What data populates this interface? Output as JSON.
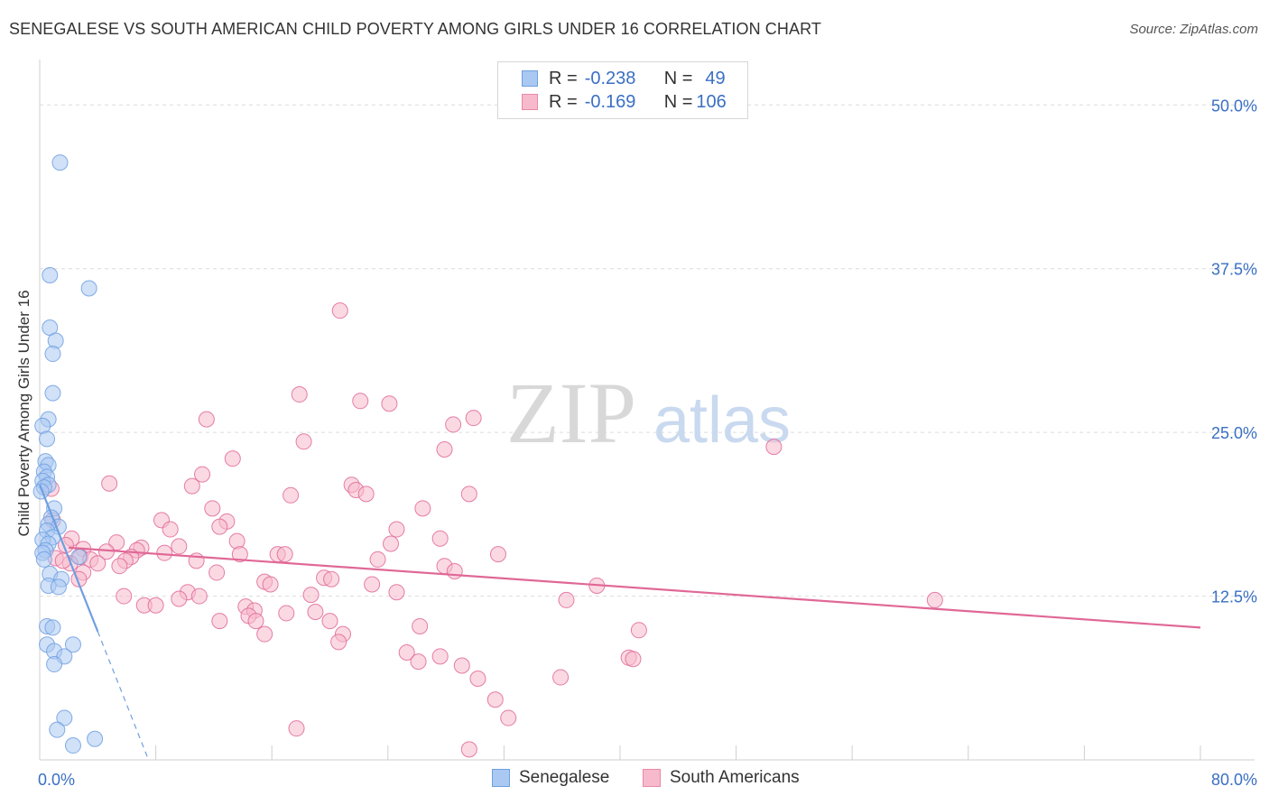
{
  "title": "SENEGALESE VS SOUTH AMERICAN CHILD POVERTY AMONG GIRLS UNDER 16 CORRELATION CHART",
  "source": "Source: ZipAtlas.com",
  "watermark": {
    "zip": "ZIP",
    "atlas": "atlas"
  },
  "legend": {
    "rows": [
      {
        "r_label": "R =",
        "r_value": "-0.238",
        "n_label": "N =",
        "n_value": "49",
        "color": "#a9c8f2",
        "border": "#6f9fe0"
      },
      {
        "r_label": "R =",
        "r_value": "-0.169",
        "n_label": "N =",
        "n_value": "106",
        "color": "#f7b9cc",
        "border": "#e889a7"
      }
    ]
  },
  "bottom_legend": [
    {
      "label": "Senegalese",
      "color": "#a9c8f2",
      "border": "#6f9fe0"
    },
    {
      "label": "South Americans",
      "color": "#f7b9cc",
      "border": "#e889a7"
    }
  ],
  "chart_data": {
    "type": "scatter",
    "title": "SENEGALESE VS SOUTH AMERICAN CHILD POVERTY AMONG GIRLS UNDER 16 CORRELATION CHART",
    "xlabel": "",
    "ylabel": "Child Poverty Among Girls Under 16",
    "xlim": [
      0,
      80
    ],
    "ylim": [
      0,
      52.5
    ],
    "x_tick_labels": [
      "0.0%",
      "80.0%"
    ],
    "y_ticks": [
      12.5,
      25.0,
      37.5,
      50.0
    ],
    "y_tick_labels": [
      "12.5%",
      "25.0%",
      "37.5%",
      "50.0%"
    ],
    "grid": true,
    "legend_position": "top-center",
    "series": [
      {
        "name": "Senegalese",
        "color": "#6f9fe0",
        "fill": "#a9c8f2",
        "trend": {
          "x0": 0.0,
          "y0": 21.0,
          "x1": 4.0,
          "y1": 9.8,
          "dash_to_x": 7.5
        },
        "points": [
          [
            1.4,
            45.6
          ],
          [
            0.7,
            37.0
          ],
          [
            3.4,
            36.0
          ],
          [
            0.7,
            33.0
          ],
          [
            1.1,
            32.0
          ],
          [
            0.9,
            31.0
          ],
          [
            0.9,
            28.0
          ],
          [
            0.6,
            26.0
          ],
          [
            0.2,
            25.5
          ],
          [
            0.5,
            24.5
          ],
          [
            0.4,
            22.8
          ],
          [
            0.6,
            22.5
          ],
          [
            0.3,
            22.0
          ],
          [
            0.5,
            21.6
          ],
          [
            0.2,
            21.3
          ],
          [
            0.6,
            21.0
          ],
          [
            0.3,
            20.8
          ],
          [
            0.1,
            20.5
          ],
          [
            1.0,
            19.2
          ],
          [
            0.8,
            18.5
          ],
          [
            0.6,
            18.0
          ],
          [
            1.3,
            17.8
          ],
          [
            0.5,
            17.5
          ],
          [
            0.9,
            17.0
          ],
          [
            0.2,
            16.8
          ],
          [
            0.6,
            16.5
          ],
          [
            0.4,
            16.0
          ],
          [
            0.2,
            15.8
          ],
          [
            2.7,
            15.5
          ],
          [
            0.3,
            15.3
          ],
          [
            0.7,
            14.2
          ],
          [
            1.5,
            13.8
          ],
          [
            0.6,
            13.3
          ],
          [
            1.3,
            13.2
          ],
          [
            0.5,
            10.2
          ],
          [
            0.9,
            10.1
          ],
          [
            0.5,
            8.8
          ],
          [
            1.0,
            8.3
          ],
          [
            2.3,
            8.8
          ],
          [
            1.7,
            7.9
          ],
          [
            1.0,
            7.3
          ],
          [
            1.7,
            3.2
          ],
          [
            1.2,
            2.3
          ],
          [
            3.8,
            1.6
          ],
          [
            2.3,
            1.1
          ]
        ]
      },
      {
        "name": "South Americans",
        "color": "#e06896",
        "fill": "#f7b9cc",
        "trend": {
          "x0": 2.0,
          "y0": 16.2,
          "x1": 80.0,
          "y1": 10.1
        },
        "points": [
          [
            20.7,
            34.3
          ],
          [
            17.9,
            27.9
          ],
          [
            22.1,
            27.4
          ],
          [
            24.1,
            27.2
          ],
          [
            11.5,
            26.0
          ],
          [
            29.9,
            26.1
          ],
          [
            28.5,
            25.6
          ],
          [
            18.2,
            24.3
          ],
          [
            27.9,
            23.7
          ],
          [
            50.6,
            23.9
          ],
          [
            13.3,
            23.0
          ],
          [
            11.2,
            21.8
          ],
          [
            4.8,
            21.1
          ],
          [
            10.5,
            20.9
          ],
          [
            21.5,
            21.0
          ],
          [
            21.8,
            20.6
          ],
          [
            22.5,
            20.3
          ],
          [
            17.3,
            20.2
          ],
          [
            29.6,
            20.3
          ],
          [
            0.8,
            20.7
          ],
          [
            11.9,
            19.2
          ],
          [
            26.4,
            19.2
          ],
          [
            8.4,
            18.3
          ],
          [
            12.9,
            18.2
          ],
          [
            0.9,
            18.3
          ],
          [
            12.4,
            17.8
          ],
          [
            9.0,
            17.6
          ],
          [
            24.6,
            17.6
          ],
          [
            2.2,
            16.9
          ],
          [
            5.3,
            16.6
          ],
          [
            13.6,
            16.7
          ],
          [
            24.2,
            16.5
          ],
          [
            27.6,
            16.9
          ],
          [
            7.0,
            16.2
          ],
          [
            9.6,
            16.3
          ],
          [
            1.8,
            16.4
          ],
          [
            6.7,
            16.0
          ],
          [
            3.0,
            16.1
          ],
          [
            8.6,
            15.8
          ],
          [
            4.6,
            15.9
          ],
          [
            2.8,
            15.5
          ],
          [
            3.5,
            15.3
          ],
          [
            6.3,
            15.5
          ],
          [
            1.1,
            15.4
          ],
          [
            16.4,
            15.7
          ],
          [
            16.9,
            15.7
          ],
          [
            23.3,
            15.3
          ],
          [
            31.6,
            15.7
          ],
          [
            4.0,
            15.0
          ],
          [
            2.1,
            15.0
          ],
          [
            5.9,
            15.2
          ],
          [
            1.6,
            15.2
          ],
          [
            10.8,
            15.2
          ],
          [
            13.8,
            15.7
          ],
          [
            27.9,
            14.8
          ],
          [
            5.5,
            14.8
          ],
          [
            28.6,
            14.4
          ],
          [
            3.0,
            14.3
          ],
          [
            12.2,
            14.3
          ],
          [
            2.7,
            13.8
          ],
          [
            19.6,
            13.9
          ],
          [
            20.1,
            13.8
          ],
          [
            15.5,
            13.6
          ],
          [
            15.9,
            13.4
          ],
          [
            22.9,
            13.4
          ],
          [
            38.4,
            13.3
          ],
          [
            10.2,
            12.8
          ],
          [
            11.0,
            12.5
          ],
          [
            18.7,
            12.6
          ],
          [
            24.6,
            12.8
          ],
          [
            5.8,
            12.5
          ],
          [
            9.6,
            12.3
          ],
          [
            36.3,
            12.2
          ],
          [
            61.7,
            12.2
          ],
          [
            7.2,
            11.8
          ],
          [
            8.0,
            11.8
          ],
          [
            14.2,
            11.7
          ],
          [
            14.8,
            11.4
          ],
          [
            14.4,
            11.0
          ],
          [
            17.0,
            11.2
          ],
          [
            19.0,
            11.3
          ],
          [
            14.9,
            10.6
          ],
          [
            12.4,
            10.6
          ],
          [
            20.0,
            10.6
          ],
          [
            26.2,
            10.2
          ],
          [
            15.5,
            9.6
          ],
          [
            41.3,
            9.9
          ],
          [
            20.9,
            9.6
          ],
          [
            20.6,
            9.0
          ],
          [
            25.3,
            8.2
          ],
          [
            27.6,
            7.9
          ],
          [
            26.1,
            7.5
          ],
          [
            40.6,
            7.8
          ],
          [
            40.9,
            7.7
          ],
          [
            29.1,
            7.2
          ],
          [
            30.2,
            6.2
          ],
          [
            35.9,
            6.3
          ],
          [
            31.4,
            4.6
          ],
          [
            32.3,
            3.2
          ],
          [
            17.7,
            2.4
          ],
          [
            29.6,
            0.8
          ]
        ]
      }
    ]
  }
}
